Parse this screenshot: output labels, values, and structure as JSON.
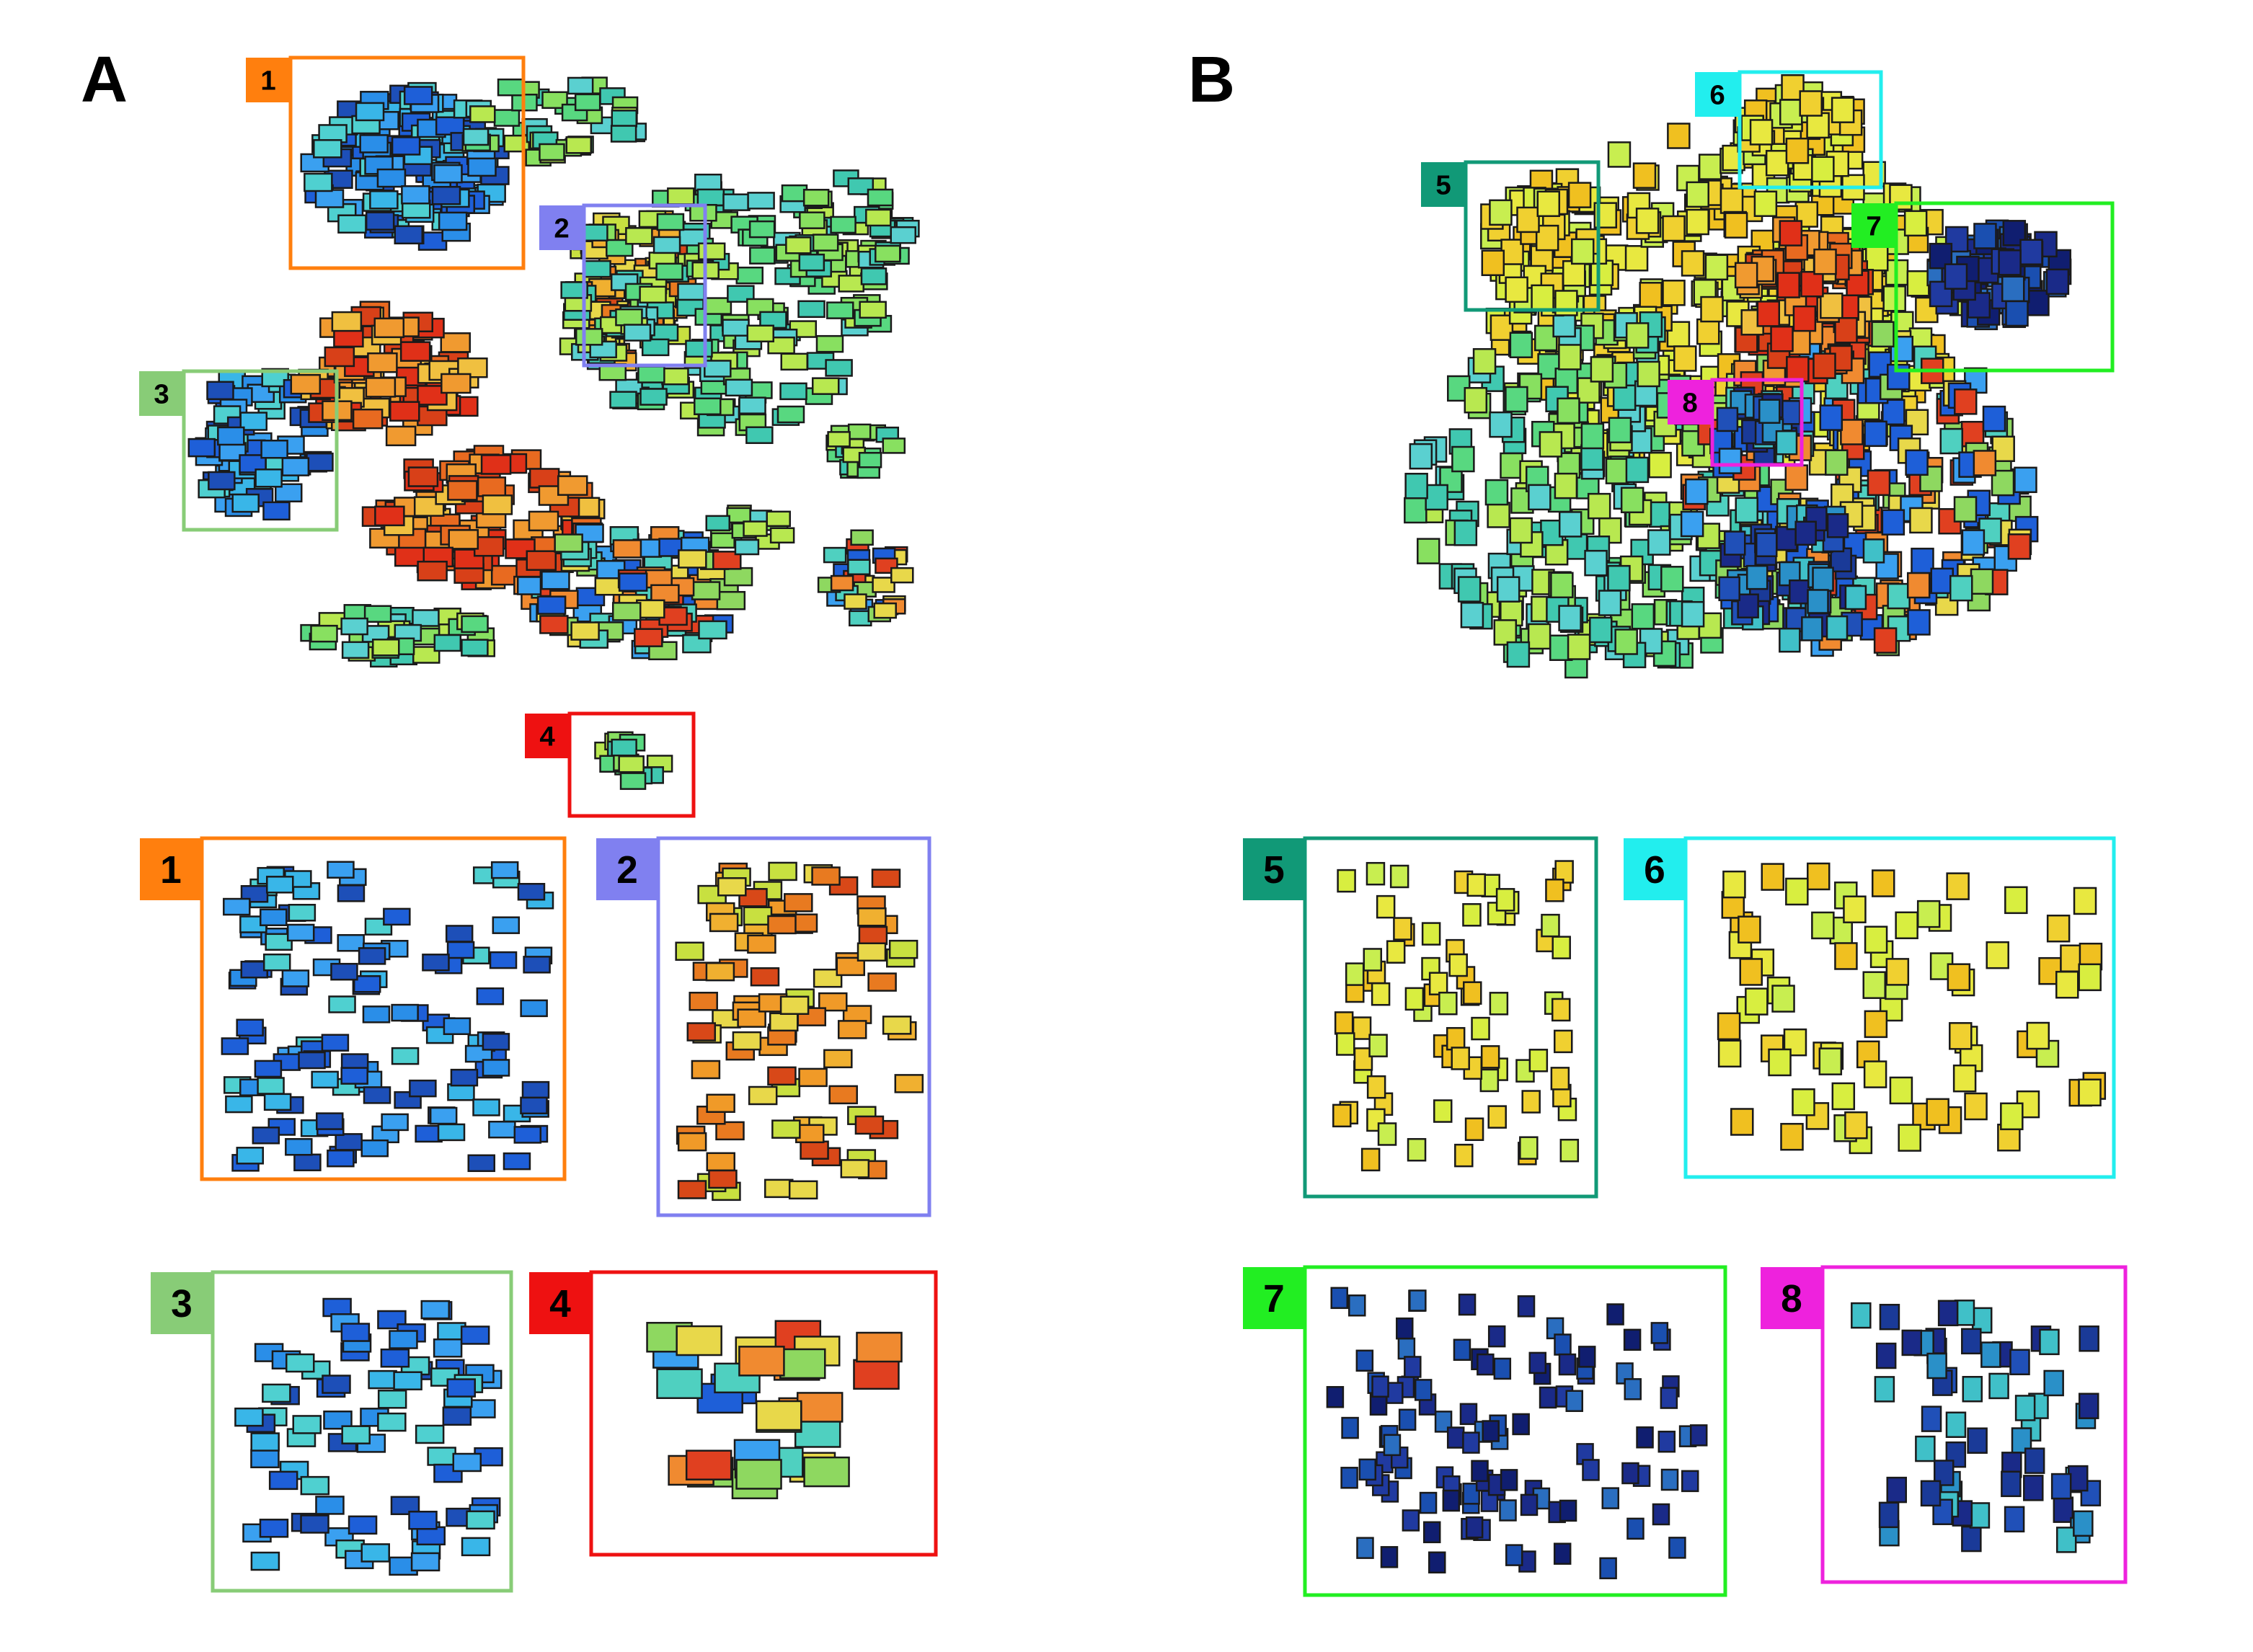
{
  "panels": [
    {
      "letter": "A"
    },
    {
      "letter": "B"
    }
  ],
  "regions": [
    {
      "id": "1",
      "color": "#ff7f0e",
      "palette": "blue"
    },
    {
      "id": "2",
      "color": "#8080f0",
      "palette": "warm"
    },
    {
      "id": "3",
      "color": "#88cc77",
      "palette": "blue"
    },
    {
      "id": "4",
      "color": "#ee1111",
      "palette": "mixed"
    },
    {
      "id": "5",
      "color": "#119977",
      "palette": "yellow"
    },
    {
      "id": "6",
      "color": "#22eeee",
      "palette": "yellow"
    },
    {
      "id": "7",
      "color": "#22ee22",
      "palette": "navy"
    },
    {
      "id": "8",
      "color": "#ee22dd",
      "palette": "navyteal"
    }
  ]
}
